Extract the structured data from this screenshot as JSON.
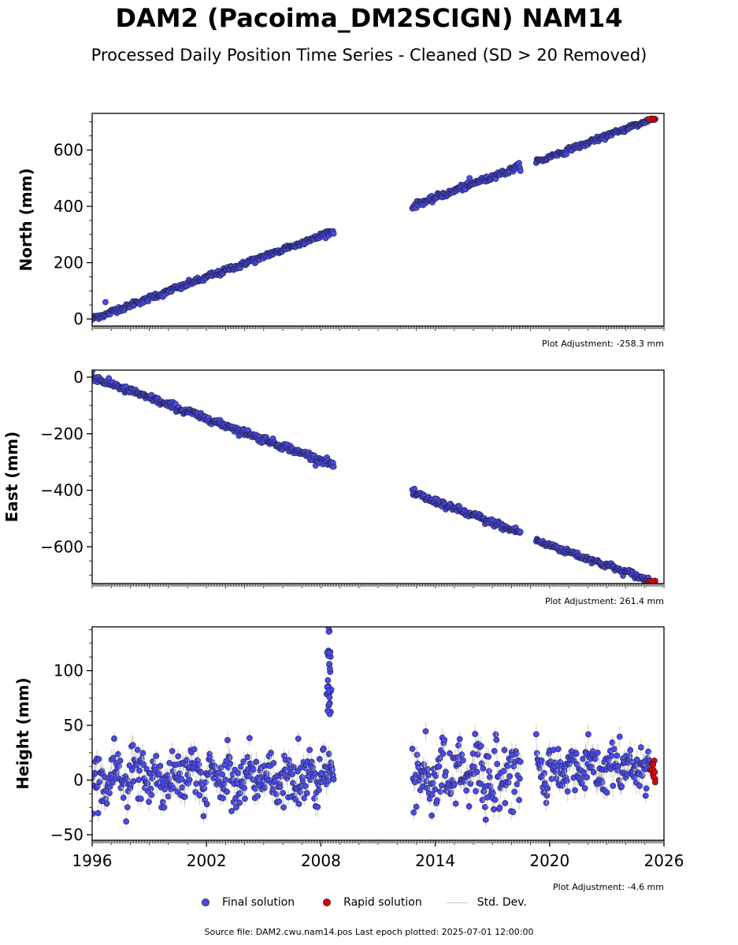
{
  "figure": {
    "title": "DAM2 (Pacoima_DM2SCIGN) NAM14",
    "subtitle": "Processed Daily Position Time Series - Cleaned (SD > 20 Removed)",
    "source": "Source file: DAM2.cwu.nam14.pos  Last epoch plotted: 2025-07-01 12:00:00"
  },
  "legend": {
    "final_label": "Final solution",
    "rapid_label": "Rapid solution",
    "std_label": "Std. Dev."
  },
  "colors": {
    "final": "#4a4ae6",
    "rapid": "#e60000",
    "std": "#bdbdbd",
    "edge": "#222244"
  },
  "chart_data": [
    {
      "type": "scatter",
      "ylabel": "North (mm)",
      "adjustment": "Plot Adjustment: -258.3 mm",
      "xlim": [
        1996,
        2026
      ],
      "ylim": [
        -25,
        730
      ],
      "yticks": [
        0,
        200,
        400,
        600
      ],
      "ytick_labels": [
        "0",
        "200",
        "400",
        "600"
      ],
      "xtick_labels_shown": false,
      "segments": [
        {
          "x": [
            1996.0,
            2008.7
          ],
          "y": [
            0,
            313
          ],
          "noise": 5
        },
        {
          "x": [
            2012.8,
            2018.5
          ],
          "y": [
            400,
            543
          ],
          "noise": 5
        },
        {
          "x": [
            2019.3,
            2025.3
          ],
          "y": [
            558,
            708
          ],
          "noise": 4
        }
      ],
      "rapid": {
        "x": [
          2025.2,
          2025.55
        ],
        "y": [
          707,
          712
        ]
      },
      "outliers": [
        {
          "x": 1996.7,
          "y": 60
        },
        {
          "x": 2015.8,
          "y": 500
        }
      ]
    },
    {
      "type": "scatter",
      "ylabel": "East (mm)",
      "adjustment": "Plot Adjustment: 261.4 mm",
      "xlim": [
        1996,
        2026
      ],
      "ylim": [
        -730,
        25
      ],
      "yticks": [
        0,
        -200,
        -400,
        -600
      ],
      "ytick_labels": [
        "0",
        "−200",
        "−400",
        "−600"
      ],
      "xtick_labels_shown": false,
      "segments": [
        {
          "x": [
            1996.0,
            2008.7
          ],
          "y": [
            0,
            -310
          ],
          "noise": 6
        },
        {
          "x": [
            2012.8,
            2018.5
          ],
          "y": [
            -410,
            -552
          ],
          "noise": 6
        },
        {
          "x": [
            2019.3,
            2025.3
          ],
          "y": [
            -578,
            -720
          ],
          "noise": 5
        }
      ],
      "rapid": {
        "x": [
          2025.2,
          2025.55
        ],
        "y": [
          -720,
          -724
        ]
      },
      "outliers": [
        {
          "x": 1996.0,
          "y": 20
        }
      ]
    },
    {
      "type": "scatter",
      "ylabel": "Height (mm)",
      "adjustment": "Plot Adjustment: -4.6 mm",
      "xlim": [
        1996,
        2026
      ],
      "ylim": [
        -55,
        140
      ],
      "yticks": [
        -50,
        0,
        50,
        100
      ],
      "ytick_labels": [
        "−50",
        "0",
        "50",
        "100"
      ],
      "xticks": [
        1996,
        2002,
        2008,
        2014,
        2020,
        2026
      ],
      "xtick_labels": [
        "1996",
        "2002",
        "2008",
        "2014",
        "2020",
        "2026"
      ],
      "xtick_labels_shown": true,
      "segments": [
        {
          "x": [
            1996.0,
            2008.7
          ],
          "y": [
            3,
            3
          ],
          "noise": 12
        },
        {
          "x": [
            2012.8,
            2018.5
          ],
          "y": [
            4,
            4
          ],
          "noise": 17
        },
        {
          "x": [
            2019.3,
            2025.3
          ],
          "y": [
            10,
            10
          ],
          "noise": 11
        }
      ],
      "spike": {
        "x": [
          2008.3,
          2008.55
        ],
        "y": [
          60,
          140
        ]
      },
      "rapid": {
        "x": [
          2025.3,
          2025.55
        ],
        "y": [
          -5,
          22
        ]
      },
      "outliers": []
    }
  ]
}
